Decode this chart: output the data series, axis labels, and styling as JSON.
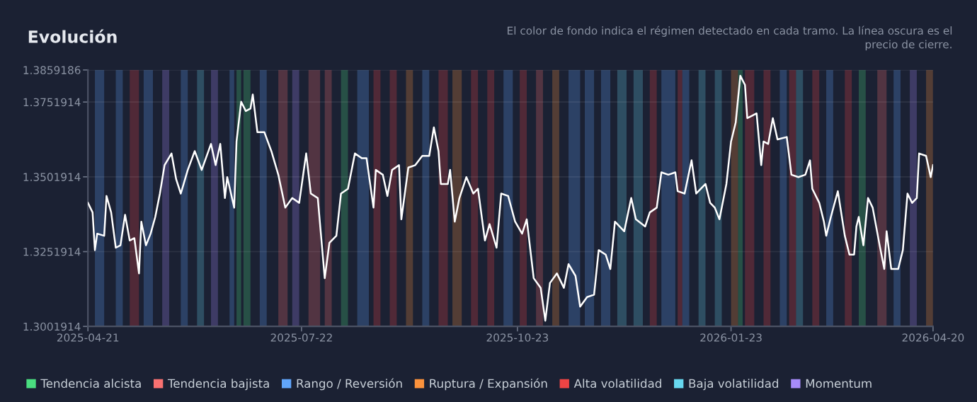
{
  "chart_data": {
    "type": "line",
    "title": "Evolución",
    "subtitle": "El color de fondo indica el régimen detectado en cada tramo. La línea oscura es el\nprecio de cierre.",
    "xlim": [
      "2025-04-21",
      "2026-04-20"
    ],
    "xticks": [
      "2025-04-21",
      "2025-07-22",
      "2025-10-23",
      "2026-01-23",
      "2026-04-20"
    ],
    "ylim": [
      1.3001914,
      1.3859186
    ],
    "yticks": [
      1.3001914,
      1.3251914,
      1.3501914,
      1.3751914,
      1.3859186
    ],
    "grid": "y",
    "legend": "bottom",
    "marker": "none",
    "line_style": "solid",
    "series": [
      {
        "color": "#ffffff",
        "x": [
          "2025-04-21",
          "2025-04-23",
          "2025-04-24",
          "2025-04-25",
          "2025-04-28",
          "2025-04-29",
          "2025-05-01",
          "2025-05-03",
          "2025-05-05",
          "2025-05-07",
          "2025-05-09",
          "2025-05-11",
          "2025-05-13",
          "2025-05-14",
          "2025-05-16",
          "2025-05-18",
          "2025-05-20",
          "2025-05-22",
          "2025-05-24",
          "2025-05-27",
          "2025-05-29",
          "2025-05-31",
          "2025-06-03",
          "2025-06-06",
          "2025-06-09",
          "2025-06-13",
          "2025-06-15",
          "2025-06-17",
          "2025-06-19",
          "2025-06-20",
          "2025-06-23",
          "2025-06-24",
          "2025-06-26",
          "2025-06-28",
          "2025-06-30",
          "2025-07-01",
          "2025-07-03",
          "2025-07-06",
          "2025-07-09",
          "2025-07-12",
          "2025-07-15",
          "2025-07-18",
          "2025-07-21",
          "2025-07-24",
          "2025-07-26",
          "2025-07-29",
          "2025-08-01",
          "2025-08-03",
          "2025-08-06",
          "2025-08-08",
          "2025-08-11",
          "2025-08-14",
          "2025-08-17",
          "2025-08-19",
          "2025-08-22",
          "2025-08-23",
          "2025-08-26",
          "2025-08-28",
          "2025-08-30",
          "2025-09-02",
          "2025-09-03",
          "2025-09-06",
          "2025-09-09",
          "2025-09-12",
          "2025-09-15",
          "2025-09-17",
          "2025-09-19",
          "2025-09-20",
          "2025-09-23",
          "2025-09-24",
          "2025-09-26",
          "2025-09-28",
          "2025-10-01",
          "2025-10-04",
          "2025-10-06",
          "2025-10-09",
          "2025-10-11",
          "2025-10-14",
          "2025-10-16",
          "2025-10-19",
          "2025-10-22",
          "2025-10-25",
          "2025-10-27",
          "2025-10-30",
          "2025-11-02",
          "2025-11-04",
          "2025-11-06",
          "2025-11-09",
          "2025-11-12",
          "2025-11-14",
          "2025-11-17",
          "2025-11-19",
          "2025-11-22",
          "2025-11-25",
          "2025-11-27",
          "2025-11-30",
          "2025-12-02",
          "2025-12-04",
          "2025-12-08",
          "2025-12-11",
          "2025-12-13",
          "2025-12-17",
          "2025-12-19",
          "2025-12-22",
          "2025-12-24",
          "2025-12-27",
          "2025-12-30",
          "2025-12-31",
          "2026-01-03",
          "2026-01-06",
          "2026-01-08",
          "2026-01-12",
          "2026-01-14",
          "2026-01-16",
          "2026-01-18",
          "2026-01-21",
          "2026-01-23",
          "2026-01-25",
          "2026-01-27",
          "2026-01-29",
          "2026-01-30",
          "2026-02-01",
          "2026-02-03",
          "2026-02-05",
          "2026-02-06",
          "2026-02-08",
          "2026-02-10",
          "2026-02-12",
          "2026-02-16",
          "2026-02-18",
          "2026-02-21",
          "2026-02-24",
          "2026-02-26",
          "2026-02-27",
          "2026-03-02",
          "2026-03-04",
          "2026-03-05",
          "2026-03-07",
          "2026-03-10",
          "2026-03-13",
          "2026-03-15",
          "2026-03-17",
          "2026-03-18",
          "2026-03-19",
          "2026-03-21",
          "2026-03-23",
          "2026-03-25",
          "2026-03-28",
          "2026-03-30",
          "2026-03-31",
          "2026-04-02",
          "2026-04-05",
          "2026-04-07",
          "2026-04-09",
          "2026-04-11",
          "2026-04-13",
          "2026-04-14",
          "2026-04-17",
          "2026-04-19",
          "2026-04-20"
        ],
        "values": [
          1.3415,
          1.3383,
          1.3257,
          1.3312,
          1.3305,
          1.3438,
          1.3383,
          1.3265,
          1.3273,
          1.3375,
          1.3289,
          1.3297,
          1.3179,
          1.3352,
          1.3273,
          1.3312,
          1.3368,
          1.3446,
          1.3541,
          1.358,
          1.3494,
          1.3446,
          1.3525,
          1.3588,
          1.3525,
          1.3612,
          1.3541,
          1.3612,
          1.3431,
          1.3501,
          1.3399,
          1.362,
          1.3753,
          1.3722,
          1.373,
          1.3777,
          1.3651,
          1.3651,
          1.3588,
          1.3509,
          1.3399,
          1.3431,
          1.3415,
          1.358,
          1.3446,
          1.3431,
          1.3163,
          1.3281,
          1.3305,
          1.3446,
          1.3462,
          1.358,
          1.3564,
          1.3564,
          1.3399,
          1.3525,
          1.3509,
          1.3438,
          1.3525,
          1.3541,
          1.336,
          1.3533,
          1.3541,
          1.3572,
          1.3572,
          1.3667,
          1.3588,
          1.3478,
          1.3478,
          1.3525,
          1.3352,
          1.3431,
          1.3501,
          1.3446,
          1.3462,
          1.3289,
          1.3344,
          1.3265,
          1.3446,
          1.3438,
          1.3352,
          1.3312,
          1.336,
          1.3163,
          1.3131,
          1.3021,
          1.3147,
          1.3179,
          1.3131,
          1.321,
          1.3171,
          1.3068,
          1.31,
          1.3108,
          1.3257,
          1.3242,
          1.3194,
          1.3352,
          1.332,
          1.3431,
          1.336,
          1.3336,
          1.3383,
          1.3399,
          1.3517,
          1.3509,
          1.3517,
          1.3454,
          1.3446,
          1.3557,
          1.3446,
          1.3478,
          1.3415,
          1.3399,
          1.336,
          1.3478,
          1.362,
          1.3683,
          1.384,
          1.3809,
          1.3698,
          1.3706,
          1.3714,
          1.3541,
          1.362,
          1.3612,
          1.3698,
          1.3627,
          1.3635,
          1.3509,
          1.3501,
          1.3509,
          1.3557,
          1.3462,
          1.3415,
          1.3352,
          1.3305,
          1.3368,
          1.3454,
          1.3305,
          1.3242,
          1.3242,
          1.3336,
          1.3368,
          1.3273,
          1.3431,
          1.3399,
          1.3273,
          1.3194,
          1.332,
          1.3194,
          1.3194,
          1.3257,
          1.3446,
          1.3415,
          1.3431,
          1.358,
          1.3572,
          1.3501,
          1.3541
        ]
      }
    ],
    "bands": [
      {
        "axis": "x",
        "from": "2025-06-24",
        "to": "2025-06-26",
        "label": "Tendencia alcista",
        "color": "#4ade80"
      },
      {
        "axis": "x",
        "from": "2025-06-27",
        "to": "2025-06-30",
        "color": "#4ade80"
      },
      {
        "axis": "x",
        "from": "2025-08-08",
        "to": "2025-08-11",
        "color": "#4ade80"
      },
      {
        "axis": "x",
        "from": "2026-01-26",
        "to": "2026-01-28",
        "color": "#4ade80"
      },
      {
        "axis": "x",
        "from": "2026-03-19",
        "to": "2026-03-22",
        "color": "#4ade80"
      },
      {
        "axis": "x",
        "from": "2025-07-12",
        "to": "2025-07-16",
        "label": "Tendencia bajista",
        "color": "#f87171"
      },
      {
        "axis": "x",
        "from": "2025-07-25",
        "to": "2025-07-30",
        "color": "#f87171"
      },
      {
        "axis": "x",
        "from": "2025-08-01",
        "to": "2025-08-04",
        "color": "#f87171"
      },
      {
        "axis": "x",
        "from": "2025-10-31",
        "to": "2025-11-03",
        "color": "#f87171"
      },
      {
        "axis": "x",
        "from": "2026-03-27",
        "to": "2026-03-31",
        "color": "#f87171"
      },
      {
        "axis": "x",
        "from": "2025-04-24",
        "to": "2025-04-28",
        "label": "Rango / Reversión",
        "color": "#60a5fa"
      },
      {
        "axis": "x",
        "from": "2025-05-03",
        "to": "2025-05-06",
        "color": "#60a5fa"
      },
      {
        "axis": "x",
        "from": "2025-05-15",
        "to": "2025-05-19",
        "color": "#60a5fa"
      },
      {
        "axis": "x",
        "from": "2025-05-31",
        "to": "2025-06-03",
        "color": "#60a5fa"
      },
      {
        "axis": "x",
        "from": "2025-06-21",
        "to": "2025-06-23",
        "color": "#60a5fa"
      },
      {
        "axis": "x",
        "from": "2025-07-04",
        "to": "2025-07-07",
        "color": "#60a5fa"
      },
      {
        "axis": "x",
        "from": "2025-08-15",
        "to": "2025-08-20",
        "color": "#60a5fa"
      },
      {
        "axis": "x",
        "from": "2025-09-12",
        "to": "2025-09-15",
        "color": "#60a5fa"
      },
      {
        "axis": "x",
        "from": "2025-10-17",
        "to": "2025-10-21",
        "color": "#60a5fa"
      },
      {
        "axis": "x",
        "from": "2025-11-14",
        "to": "2025-11-19",
        "color": "#60a5fa"
      },
      {
        "axis": "x",
        "from": "2025-11-21",
        "to": "2025-11-25",
        "color": "#60a5fa"
      },
      {
        "axis": "x",
        "from": "2025-11-28",
        "to": "2025-12-02",
        "color": "#60a5fa"
      },
      {
        "axis": "x",
        "from": "2025-12-24",
        "to": "2025-12-30",
        "color": "#60a5fa"
      },
      {
        "axis": "x",
        "from": "2026-01-02",
        "to": "2026-01-05",
        "color": "#60a5fa"
      },
      {
        "axis": "x",
        "from": "2026-02-13",
        "to": "2026-02-16",
        "color": "#60a5fa"
      },
      {
        "axis": "x",
        "from": "2026-03-05",
        "to": "2026-03-08",
        "color": "#60a5fa"
      },
      {
        "axis": "x",
        "from": "2026-04-03",
        "to": "2026-04-06",
        "color": "#60a5fa"
      },
      {
        "axis": "x",
        "from": "2025-09-05",
        "to": "2025-09-08",
        "label": "Ruptura / Expansión",
        "color": "#fb923c"
      },
      {
        "axis": "x",
        "from": "2025-09-25",
        "to": "2025-09-29",
        "color": "#fb923c"
      },
      {
        "axis": "x",
        "from": "2025-11-07",
        "to": "2025-11-10",
        "color": "#fb923c"
      },
      {
        "axis": "x",
        "from": "2026-01-23",
        "to": "2026-01-26",
        "color": "#fb923c"
      },
      {
        "axis": "x",
        "from": "2026-04-17",
        "to": "2026-04-20",
        "color": "#fb923c"
      },
      {
        "axis": "x",
        "from": "2025-05-09",
        "to": "2025-05-13",
        "label": "Alta volatilidad",
        "color": "#ef4444"
      },
      {
        "axis": "x",
        "from": "2025-08-22",
        "to": "2025-08-25",
        "color": "#ef4444"
      },
      {
        "axis": "x",
        "from": "2025-08-29",
        "to": "2025-09-01",
        "color": "#ef4444"
      },
      {
        "axis": "x",
        "from": "2025-09-19",
        "to": "2025-09-23",
        "color": "#ef4444"
      },
      {
        "axis": "x",
        "from": "2025-10-03",
        "to": "2025-10-06",
        "color": "#ef4444"
      },
      {
        "axis": "x",
        "from": "2025-10-10",
        "to": "2025-10-13",
        "color": "#ef4444"
      },
      {
        "axis": "x",
        "from": "2025-10-24",
        "to": "2025-10-27",
        "color": "#ef4444"
      },
      {
        "axis": "x",
        "from": "2025-12-19",
        "to": "2025-12-22",
        "color": "#ef4444"
      },
      {
        "axis": "x",
        "from": "2025-12-31",
        "to": "2026-01-02",
        "color": "#ef4444"
      },
      {
        "axis": "x",
        "from": "2026-01-29",
        "to": "2026-02-02",
        "color": "#ef4444"
      },
      {
        "axis": "x",
        "from": "2026-02-06",
        "to": "2026-02-09",
        "color": "#ef4444"
      },
      {
        "axis": "x",
        "from": "2026-02-17",
        "to": "2026-02-20",
        "color": "#ef4444"
      },
      {
        "axis": "x",
        "from": "2026-02-27",
        "to": "2026-03-02",
        "color": "#ef4444"
      },
      {
        "axis": "x",
        "from": "2026-03-13",
        "to": "2026-03-16",
        "color": "#ef4444"
      },
      {
        "axis": "x",
        "from": "2025-06-07",
        "to": "2025-06-10",
        "label": "Baja volatilidad",
        "color": "#67d8ef"
      },
      {
        "axis": "x",
        "from": "2025-12-05",
        "to": "2025-12-09",
        "color": "#67d8ef"
      },
      {
        "axis": "x",
        "from": "2025-12-12",
        "to": "2025-12-16",
        "color": "#67d8ef"
      },
      {
        "axis": "x",
        "from": "2026-01-09",
        "to": "2026-01-12",
        "color": "#67d8ef"
      },
      {
        "axis": "x",
        "from": "2026-01-16",
        "to": "2026-01-19",
        "color": "#67d8ef"
      },
      {
        "axis": "x",
        "from": "2026-02-20",
        "to": "2026-02-23",
        "color": "#67d8ef"
      },
      {
        "axis": "x",
        "from": "2025-05-23",
        "to": "2025-05-26",
        "label": "Momentum",
        "color": "#a78bfa"
      },
      {
        "axis": "x",
        "from": "2025-06-13",
        "to": "2025-06-16",
        "color": "#a78bfa"
      },
      {
        "axis": "x",
        "from": "2025-07-18",
        "to": "2025-07-21",
        "color": "#a78bfa"
      },
      {
        "axis": "x",
        "from": "2026-04-10",
        "to": "2026-04-13",
        "color": "#a78bfa"
      }
    ]
  }
}
